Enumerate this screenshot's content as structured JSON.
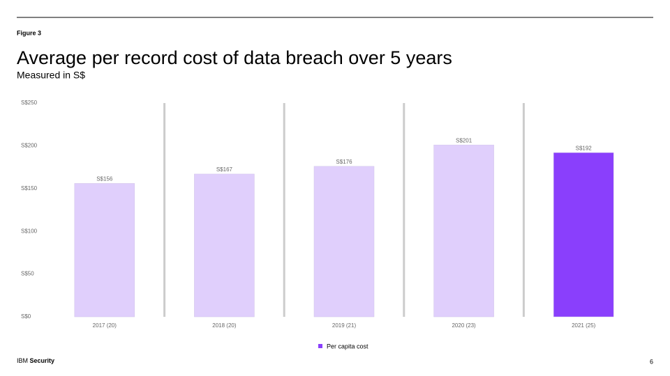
{
  "figure_label": "Figure 3",
  "footer": {
    "brand": "IBM",
    "product": "Security",
    "page": "6"
  },
  "chart_data": {
    "type": "bar",
    "title": "Average per record cost of data breach over 5 years",
    "subtitle": "Measured in S$",
    "categories": [
      "2017 (20)",
      "2018 (20)",
      "2019 (21)",
      "2020 (23)",
      "2021 (25)"
    ],
    "series": [
      {
        "name": "Per capita cost",
        "color": "#8a3ffc",
        "values": [
          156,
          167,
          176,
          201,
          192
        ],
        "value_labels": [
          "S$156",
          "S$167",
          "S$176",
          "S$201",
          "S$192"
        ],
        "colors": [
          "#e0cffc",
          "#e0cffc",
          "#e0cffc",
          "#e0cffc",
          "#8a3ffc"
        ]
      }
    ],
    "ylim": [
      0,
      250
    ],
    "yticks": [
      {
        "value": 0,
        "label": "S$0"
      },
      {
        "value": 50,
        "label": "S$50"
      },
      {
        "value": 100,
        "label": "S$100"
      },
      {
        "value": 150,
        "label": "S$150"
      },
      {
        "value": 200,
        "label": "S$200"
      },
      {
        "value": 250,
        "label": "S$250"
      }
    ],
    "legend": "bottom"
  }
}
